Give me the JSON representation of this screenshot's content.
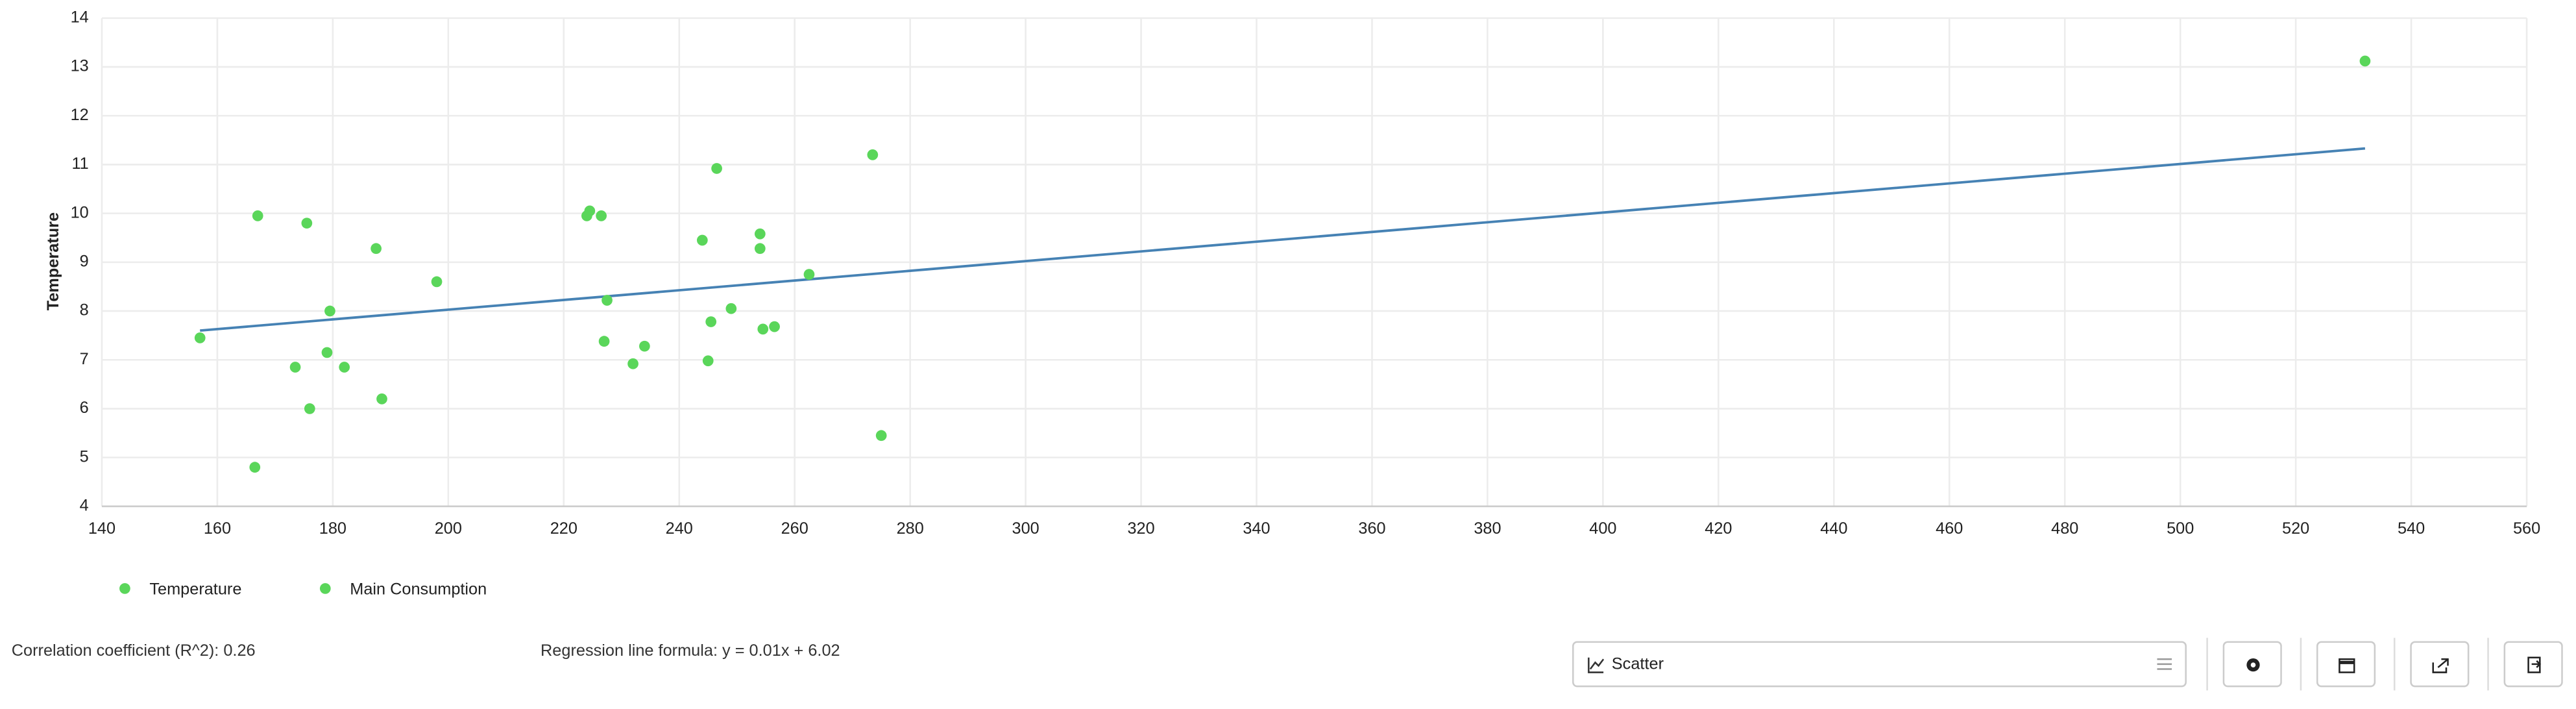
{
  "chart_data": {
    "type": "scatter",
    "y_label": "Temperature",
    "xlim": [
      140,
      560
    ],
    "xticks": [
      140,
      160,
      180,
      200,
      220,
      240,
      260,
      280,
      300,
      320,
      340,
      360,
      380,
      400,
      420,
      440,
      460,
      480,
      500,
      520,
      540,
      560
    ],
    "ylim": [
      4,
      14
    ],
    "yticks": [
      4,
      5,
      6,
      7,
      8,
      9,
      10,
      11,
      12,
      13,
      14
    ],
    "grid": true,
    "legend": [
      {
        "name": "Temperature",
        "color": "#5ad65a"
      },
      {
        "name": "Main Consumption",
        "color": "#5ad65a"
      }
    ],
    "series": [
      {
        "color": "#5ad65a",
        "x": [
          157,
          166.5,
          167,
          173.5,
          175.5,
          176,
          179,
          179.5,
          182,
          187.5,
          188.5,
          198,
          224,
          224.5,
          226.5,
          227,
          227.5,
          232,
          234,
          244,
          245,
          245.5,
          246.5,
          249,
          254,
          254,
          254.5,
          256.5,
          262.5,
          273.5,
          275,
          532
        ],
        "values": [
          7.45,
          4.8,
          9.95,
          6.85,
          9.8,
          6.0,
          7.15,
          8.0,
          6.85,
          9.28,
          6.2,
          8.6,
          9.95,
          10.05,
          9.95,
          7.38,
          8.22,
          6.92,
          7.28,
          9.45,
          6.98,
          7.78,
          10.92,
          8.05,
          9.58,
          9.28,
          7.63,
          7.68,
          8.75,
          11.2,
          5.45,
          13.12
        ]
      }
    ],
    "regression_line": {
      "color": "#4682b4",
      "x": [
        157,
        532
      ],
      "values": [
        7.6,
        11.33
      ]
    },
    "annotations": [
      "Correlation coefficient (R^2): 0.26",
      "Regression line formula: y = 0.01x + 6.02"
    ],
    "chart_select": "Scatter"
  }
}
